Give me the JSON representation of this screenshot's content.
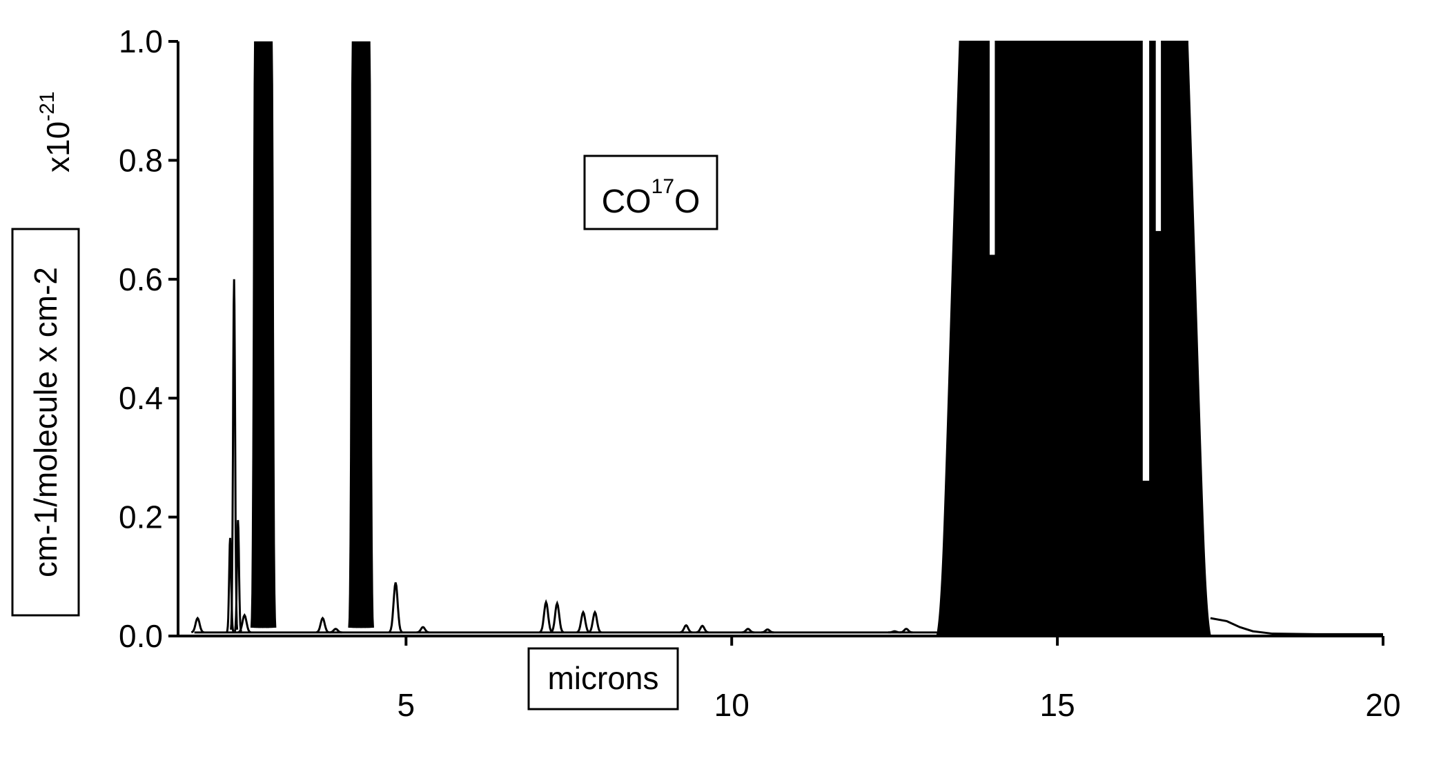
{
  "chart_data": {
    "type": "line",
    "title": "",
    "annotation": {
      "base": "CO",
      "superscript": "17",
      "suffix": "O"
    },
    "xlabel": "microns",
    "ylabel": "cm-1/molecule x cm-2",
    "y_multiplier": {
      "base": "x10",
      "exponent": "-21"
    },
    "xlim": [
      1.5,
      20
    ],
    "ylim": [
      0,
      1.0
    ],
    "x_ticks": [
      5,
      10,
      15,
      20
    ],
    "x_tick_labels": [
      "5",
      "10",
      "15",
      "20"
    ],
    "y_ticks": [
      0.0,
      0.2,
      0.4,
      0.6,
      0.8,
      1.0
    ],
    "y_tick_labels": [
      "0.0",
      "0.2",
      "0.4",
      "0.6",
      "0.8",
      "1.0"
    ],
    "grid": false,
    "series": [
      {
        "color": "#000000",
        "baseline": 0.006,
        "peaks": [
          {
            "x": 1.8,
            "y": 0.03
          },
          {
            "x": 2.3,
            "y": 0.165
          },
          {
            "x": 2.36,
            "y": 0.6
          },
          {
            "x": 2.42,
            "y": 0.195
          },
          {
            "x": 2.52,
            "y": 0.035
          },
          {
            "x": 2.72,
            "y": 1.0
          },
          {
            "x": 2.78,
            "y": 1.0
          },
          {
            "x": 2.84,
            "y": 1.0
          },
          {
            "x": 2.9,
            "y": 1.0
          },
          {
            "x": 3.72,
            "y": 0.03
          },
          {
            "x": 3.92,
            "y": 0.012
          },
          {
            "x": 4.22,
            "y": 1.0
          },
          {
            "x": 4.28,
            "y": 1.0
          },
          {
            "x": 4.34,
            "y": 1.0
          },
          {
            "x": 4.4,
            "y": 1.0
          },
          {
            "x": 4.84,
            "y": 0.09
          },
          {
            "x": 5.26,
            "y": 0.015
          },
          {
            "x": 7.15,
            "y": 0.057
          },
          {
            "x": 7.32,
            "y": 0.055
          },
          {
            "x": 7.72,
            "y": 0.04
          },
          {
            "x": 7.9,
            "y": 0.04
          },
          {
            "x": 9.3,
            "y": 0.018
          },
          {
            "x": 9.55,
            "y": 0.017
          },
          {
            "x": 10.25,
            "y": 0.012
          },
          {
            "x": 10.55,
            "y": 0.011
          },
          {
            "x": 12.5,
            "y": 0.008
          },
          {
            "x": 12.68,
            "y": 0.012
          }
        ],
        "dense_band": {
          "x_start": 13.15,
          "x_end": 17.35,
          "segments": [
            {
              "x0": 13.15,
              "x1": 13.5,
              "y": 0.5
            },
            {
              "x0": 13.5,
              "x1": 13.95,
              "y": 1.0
            },
            {
              "x0": 13.95,
              "x1": 14.05,
              "y": 0.64
            },
            {
              "x0": 14.05,
              "x1": 16.3,
              "y": 1.0
            },
            {
              "x0": 16.3,
              "x1": 16.42,
              "y": 0.26
            },
            {
              "x0": 16.42,
              "x1": 16.5,
              "y": 1.0
            },
            {
              "x0": 16.5,
              "x1": 16.6,
              "y": 0.68
            },
            {
              "x0": 16.6,
              "x1": 17.0,
              "y": 1.0
            },
            {
              "x0": 17.0,
              "x1": 17.35,
              "y": 0.5
            }
          ]
        },
        "tail": [
          {
            "x": 17.35,
            "y": 0.03
          },
          {
            "x": 17.6,
            "y": 0.025
          },
          {
            "x": 17.8,
            "y": 0.015
          },
          {
            "x": 18.0,
            "y": 0.008
          },
          {
            "x": 18.3,
            "y": 0.004
          },
          {
            "x": 19.0,
            "y": 0.003
          },
          {
            "x": 20.0,
            "y": 0.003
          }
        ]
      }
    ]
  }
}
